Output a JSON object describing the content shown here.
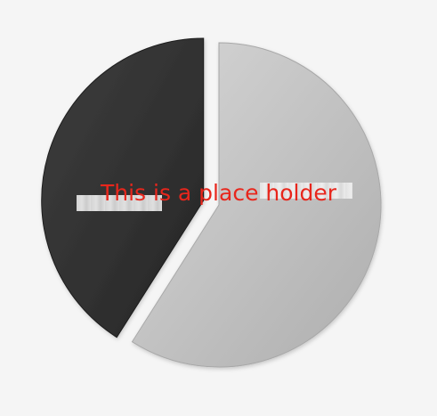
{
  "chart_data": {
    "type": "pie",
    "values": [
      59,
      41
    ],
    "colors": [
      "#c4c4c4",
      "#343434"
    ],
    "start_angle_deg": -90,
    "exploded_slice": 1,
    "legend": "none"
  },
  "overlay": {
    "placeholder_text": "This is a place holder"
  }
}
